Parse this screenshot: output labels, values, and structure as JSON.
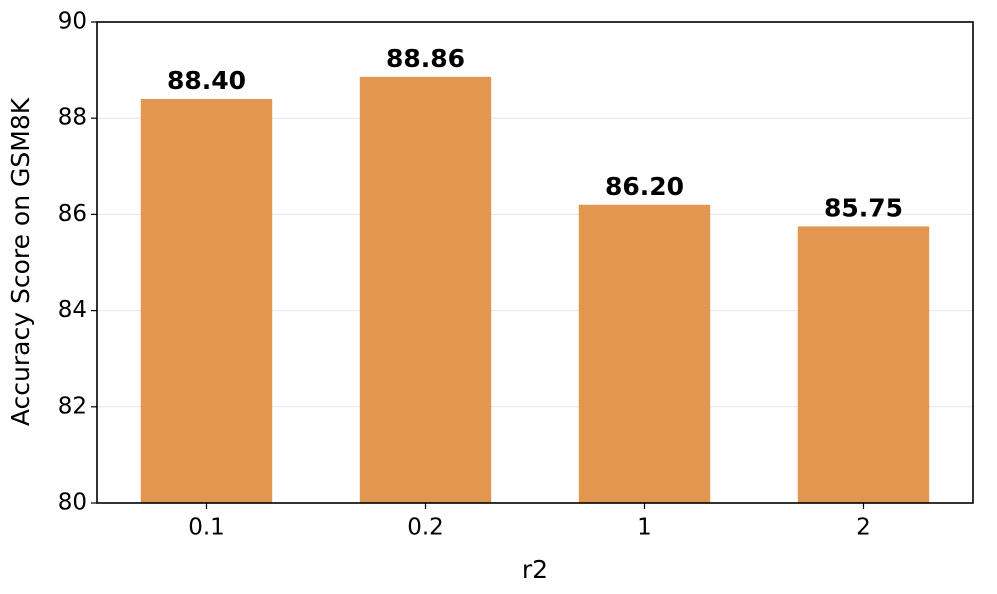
{
  "chart_data": {
    "type": "bar",
    "x_label": "r2",
    "y_label": "Accuracy Score on GSM8K",
    "categories": [
      "0.1",
      "0.2",
      "1",
      "2"
    ],
    "values": [
      88.4,
      88.86,
      86.2,
      85.75
    ],
    "value_labels": [
      "88.40",
      "88.86",
      "86.20",
      "85.75"
    ],
    "color": "#e3964f",
    "ylim": [
      80,
      90
    ],
    "yticks": [
      80,
      82,
      84,
      86,
      88,
      90
    ],
    "grid": true
  }
}
